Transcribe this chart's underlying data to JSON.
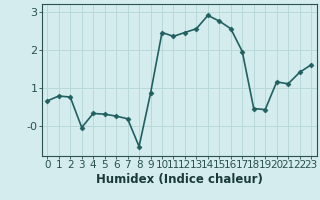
{
  "x": [
    0,
    1,
    2,
    3,
    4,
    5,
    6,
    7,
    8,
    9,
    10,
    11,
    12,
    13,
    14,
    15,
    16,
    17,
    18,
    19,
    20,
    21,
    22,
    23
  ],
  "y": [
    0.65,
    0.78,
    0.75,
    -0.05,
    0.32,
    0.3,
    0.25,
    0.18,
    -0.55,
    0.85,
    2.45,
    2.35,
    2.45,
    2.55,
    2.9,
    2.75,
    2.55,
    1.95,
    0.45,
    0.42,
    1.15,
    1.1,
    1.4,
    1.6
  ],
  "line_color": "#206060",
  "marker": "D",
  "marker_size": 2.5,
  "bg_color": "#d4ecee",
  "grid_color": "#b8d8da",
  "xlabel": "Humidex (Indice chaleur)",
  "ylim": [
    -0.8,
    3.2
  ],
  "yticks": [
    0,
    1,
    2,
    3
  ],
  "ytick_labels": [
    "-0",
    "1",
    "2",
    "3"
  ],
  "xlim": [
    -0.5,
    23.5
  ],
  "xticks": [
    0,
    1,
    2,
    3,
    4,
    5,
    6,
    7,
    8,
    9,
    10,
    11,
    12,
    13,
    14,
    15,
    16,
    17,
    18,
    19,
    20,
    21,
    22,
    23
  ],
  "line_width": 1.2,
  "tick_color": "#2a5050",
  "label_color": "#1a3a3a",
  "font_size": 7.5,
  "xlabel_fontsize": 8.5
}
